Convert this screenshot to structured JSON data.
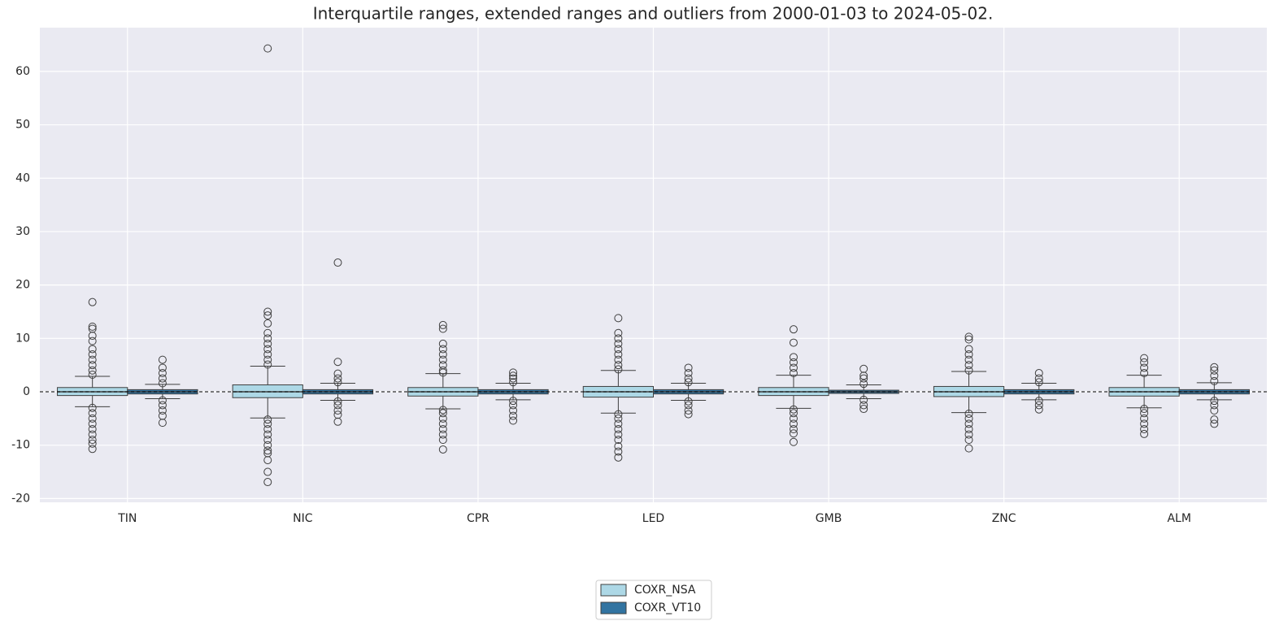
{
  "chart_data": {
    "type": "box",
    "title": "Interquartile ranges, extended ranges and outliers from 2000-01-03 to 2024-05-02.",
    "categories": [
      "TIN",
      "NIC",
      "CPR",
      "LED",
      "GMB",
      "ZNC",
      "ALM"
    ],
    "ylim": [
      -20.7,
      68.2
    ],
    "yticks": [
      -20,
      -10,
      0,
      10,
      20,
      30,
      40,
      50,
      60
    ],
    "grid": true,
    "hline": 0,
    "legend": "bottom",
    "series": [
      {
        "name": "COXR_NSA",
        "color": "#add8e6",
        "boxes": [
          {
            "whislo": -2.8,
            "q1": -0.7,
            "median": 0,
            "q3": 0.8,
            "whishi": 2.9,
            "fliers": [
              16.8,
              12.2,
              11.8,
              10.5,
              9.5,
              8,
              7,
              6,
              5,
              4,
              3.2,
              -3,
              -4,
              -5,
              -6,
              -7,
              -8,
              -9,
              -9.7,
              -10.7
            ]
          },
          {
            "whislo": -4.9,
            "q1": -1.1,
            "median": 0,
            "q3": 1.3,
            "whishi": 4.8,
            "fliers": [
              64.3,
              15,
              14.3,
              12.8,
              11,
              10,
              9,
              8,
              7,
              6,
              5.1,
              -5.2,
              -6,
              -7,
              -8,
              -9,
              -10,
              -11,
              -11.5,
              -12.8,
              -15,
              -16.9
            ]
          },
          {
            "whislo": -3.2,
            "q1": -0.8,
            "median": 0,
            "q3": 0.8,
            "whishi": 3.4,
            "fliers": [
              12.5,
              11.8,
              9,
              8,
              7,
              6,
              5,
              4,
              3.6,
              -3.4,
              -4,
              -5,
              -6,
              -7,
              -8,
              -9,
              -10.8
            ]
          },
          {
            "whislo": -4,
            "q1": -1,
            "median": 0,
            "q3": 1,
            "whishi": 4,
            "fliers": [
              13.8,
              11,
              10,
              9,
              8,
              7,
              6,
              5,
              4.2,
              -4.2,
              -5,
              -6,
              -7,
              -8,
              -9,
              -10.2,
              -11.2,
              -12.3
            ]
          },
          {
            "whislo": -3.1,
            "q1": -0.7,
            "median": 0,
            "q3": 0.8,
            "whishi": 3.1,
            "fliers": [
              11.7,
              9.2,
              6.5,
              5.5,
              4.5,
              3.5,
              -3.3,
              -4,
              -5,
              -6,
              -7,
              -7.8,
              -9.4
            ]
          },
          {
            "whislo": -3.9,
            "q1": -0.9,
            "median": 0,
            "q3": 1,
            "whishi": 3.8,
            "fliers": [
              10.3,
              9.8,
              8,
              7,
              6,
              5,
              4,
              -4.1,
              -5,
              -6,
              -7,
              -8,
              -9,
              -10.6
            ]
          },
          {
            "whislo": -3,
            "q1": -0.8,
            "median": 0,
            "q3": 0.8,
            "whishi": 3.1,
            "fliers": [
              6.3,
              5.5,
              4.5,
              3.5,
              -3.2,
              -4,
              -5,
              -6,
              -7,
              -7.9
            ]
          }
        ]
      },
      {
        "name": "COXR_VT10",
        "color": "#3274a1",
        "boxes": [
          {
            "whislo": -1.3,
            "q1": -0.4,
            "median": 0,
            "q3": 0.4,
            "whishi": 1.4,
            "fliers": [
              6,
              4.5,
              3.5,
              2.5,
              1.6,
              -1.6,
              -2.5,
              -3.5,
              -4.5,
              -5.8
            ]
          },
          {
            "whislo": -1.6,
            "q1": -0.4,
            "median": 0,
            "q3": 0.4,
            "whishi": 1.6,
            "fliers": [
              24.2,
              5.6,
              3.4,
              2.5,
              1.8,
              -1.8,
              -2.5,
              -3.5,
              -4.3,
              -5.6
            ]
          },
          {
            "whislo": -1.5,
            "q1": -0.4,
            "median": 0,
            "q3": 0.4,
            "whishi": 1.6,
            "fliers": [
              3.6,
              3,
              2.5,
              1.8,
              -1.7,
              -2.5,
              -3.5,
              -4.5,
              -5.4
            ]
          },
          {
            "whislo": -1.6,
            "q1": -0.4,
            "median": 0,
            "q3": 0.4,
            "whishi": 1.6,
            "fliers": [
              4.5,
              3.5,
              2.5,
              1.8,
              -1.8,
              -2.5,
              -3.5,
              -4.2
            ]
          },
          {
            "whislo": -1.3,
            "q1": -0.3,
            "median": 0,
            "q3": 0.3,
            "whishi": 1.3,
            "fliers": [
              4.3,
              3,
              2.5,
              1.5,
              -1.5,
              -2.5,
              -3.2
            ]
          },
          {
            "whislo": -1.5,
            "q1": -0.4,
            "median": 0,
            "q3": 0.4,
            "whishi": 1.6,
            "fliers": [
              3.5,
              2.5,
              1.8,
              -1.7,
              -2.5,
              -3.3
            ]
          },
          {
            "whislo": -1.5,
            "q1": -0.4,
            "median": 0,
            "q3": 0.4,
            "whishi": 1.7,
            "fliers": [
              4.6,
              4,
              3,
              2,
              -1.7,
              -2.5,
              -3.5,
              -5.2,
              -6
            ]
          }
        ]
      }
    ]
  }
}
